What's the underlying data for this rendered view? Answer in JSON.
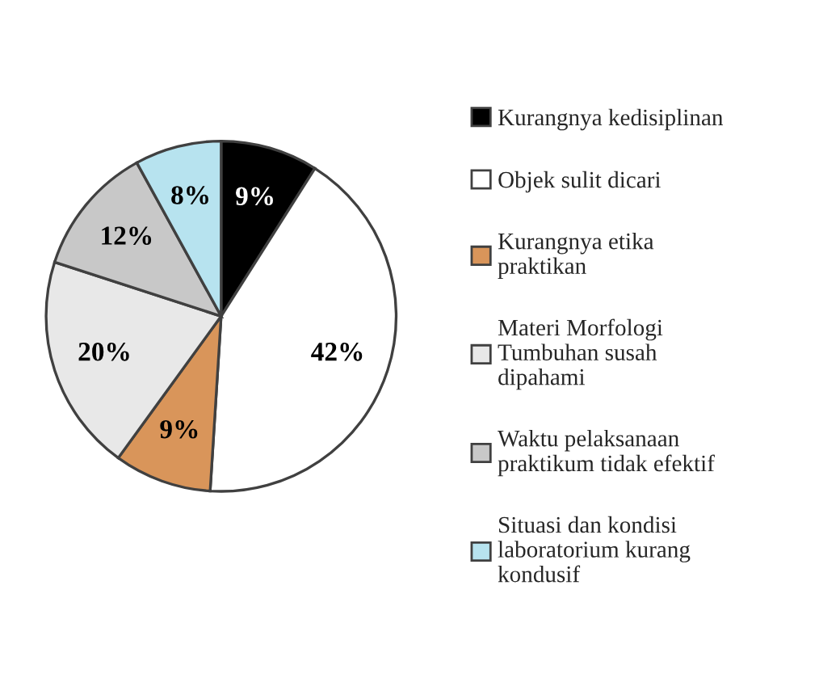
{
  "chart_data": {
    "type": "pie",
    "categories": [
      "Kurangnya kedisiplinan",
      "Objek sulit dicari",
      "Kurangnya etika\npraktikan",
      "Materi Morfologi\nTumbuhan susah\ndipahami",
      "Waktu pelaksanaan\npraktikum tidak efektif",
      "Situasi dan kondisi\nlaboratorium kurang\nkondusif"
    ],
    "values": [
      9,
      42,
      9,
      20,
      12,
      8
    ],
    "value_labels": [
      "9%",
      "42%",
      "9%",
      "20%",
      "12%",
      "8%"
    ],
    "colors": [
      "#000000",
      "#ffffff",
      "#d9955a",
      "#e8e8e8",
      "#c8c8c8",
      "#b7e3ef"
    ],
    "legend": "right"
  }
}
